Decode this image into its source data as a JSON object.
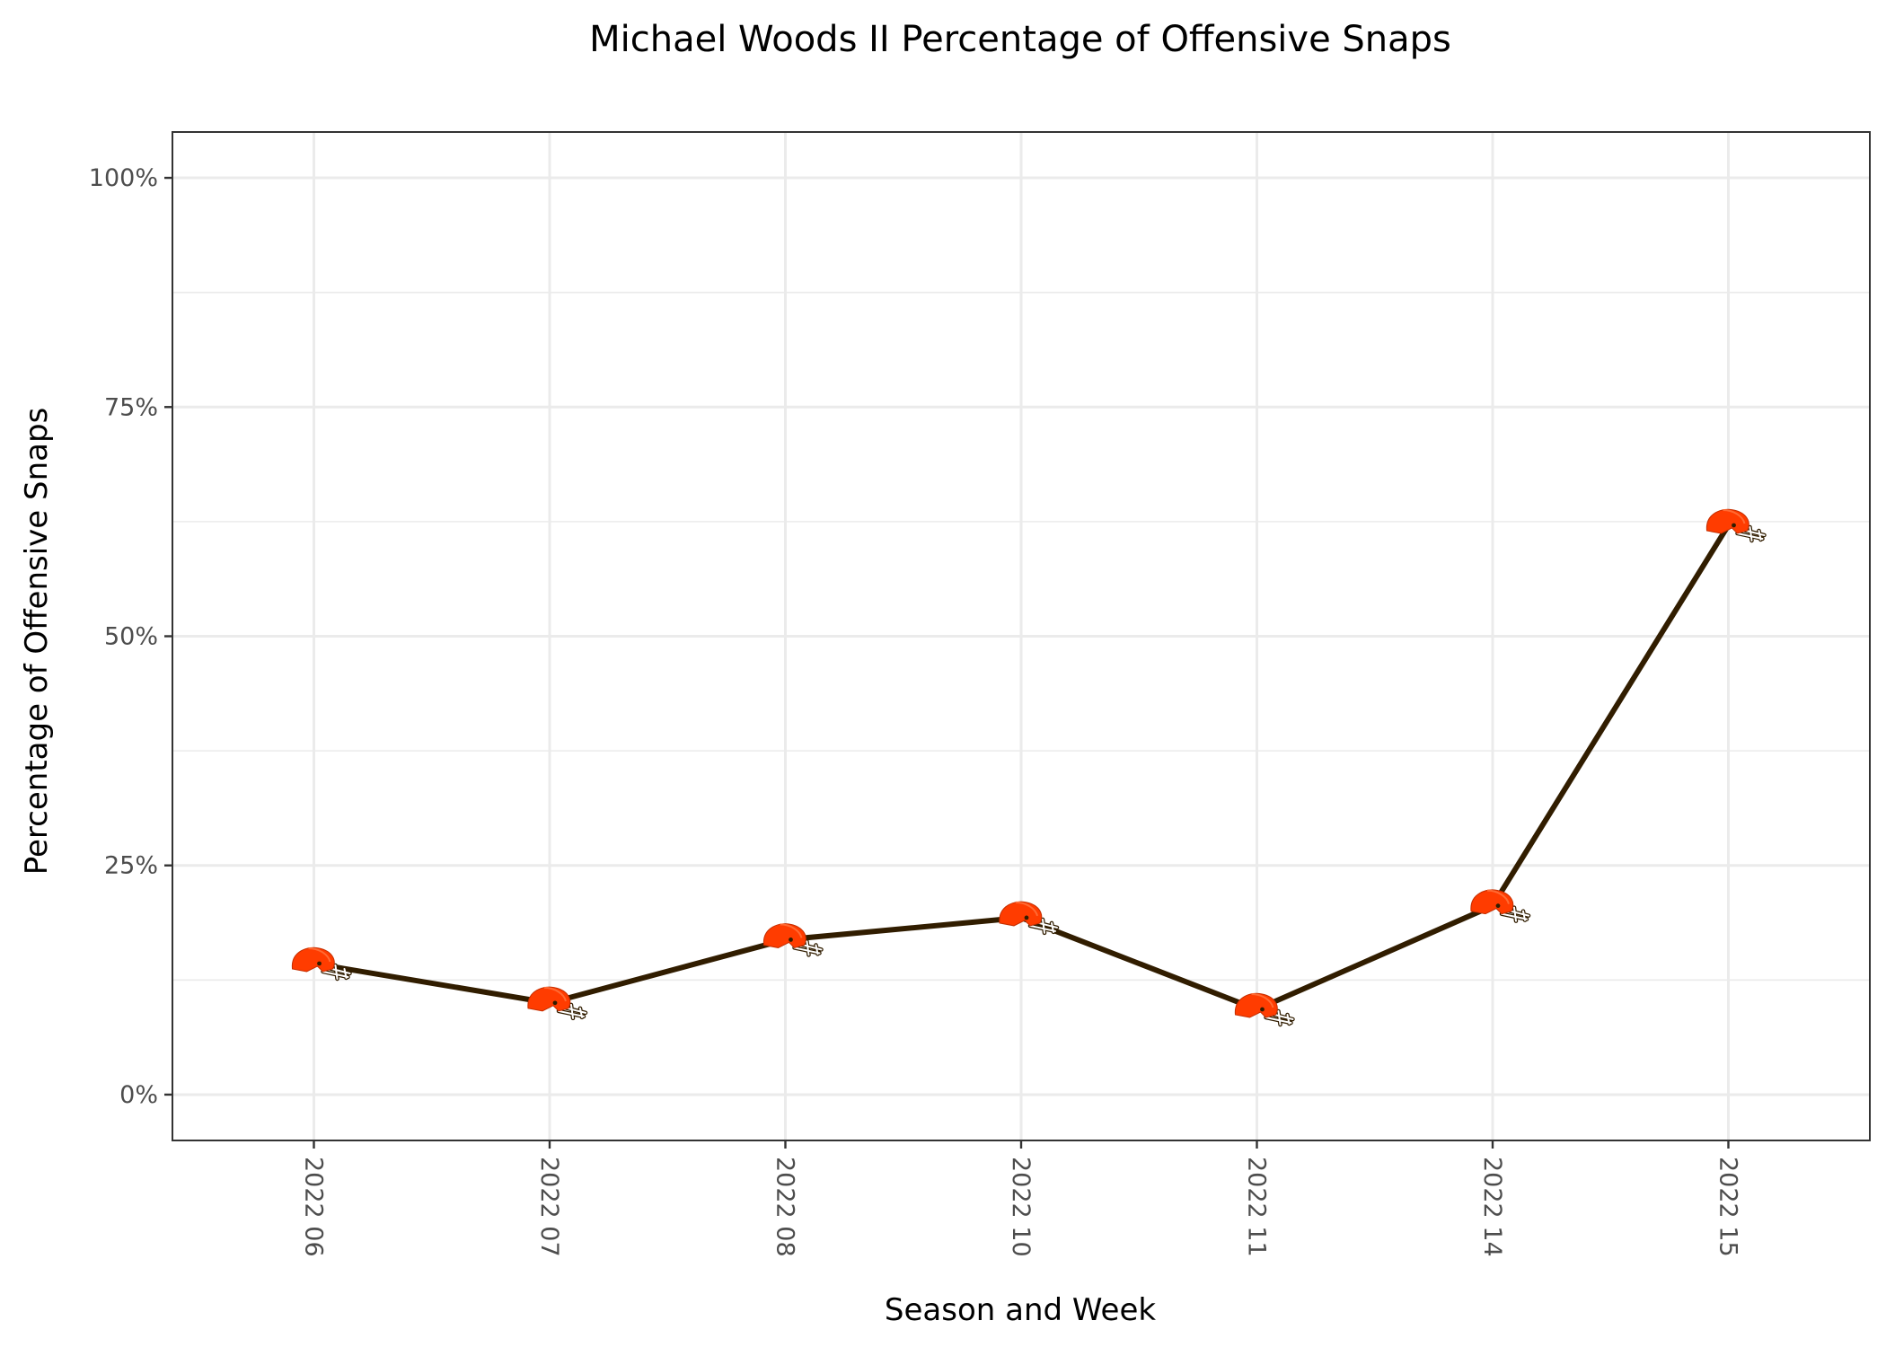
{
  "chart_data": {
    "type": "line",
    "title": "Michael Woods II Percentage of Offensive Snaps",
    "xlabel": "Season and Week",
    "ylabel": "Percentage of Offensive Snaps",
    "categories": [
      "2022 06",
      "2022 07",
      "2022 08",
      "2022 10",
      "2022 11",
      "2022 14",
      "2022 15"
    ],
    "values": [
      14.3,
      10.0,
      16.9,
      19.3,
      9.3,
      20.6,
      62.1
    ],
    "ylim": [
      -5,
      105
    ],
    "y_ticks": [
      0,
      25,
      50,
      75,
      100
    ],
    "y_tick_labels": [
      "0%",
      "25%",
      "50%",
      "75%",
      "100%"
    ],
    "grid": true,
    "line_color": "#311d00",
    "marker": "helmet-icon",
    "marker_colors": {
      "shell": "#ff3c00",
      "facemask": "#311d00"
    }
  }
}
